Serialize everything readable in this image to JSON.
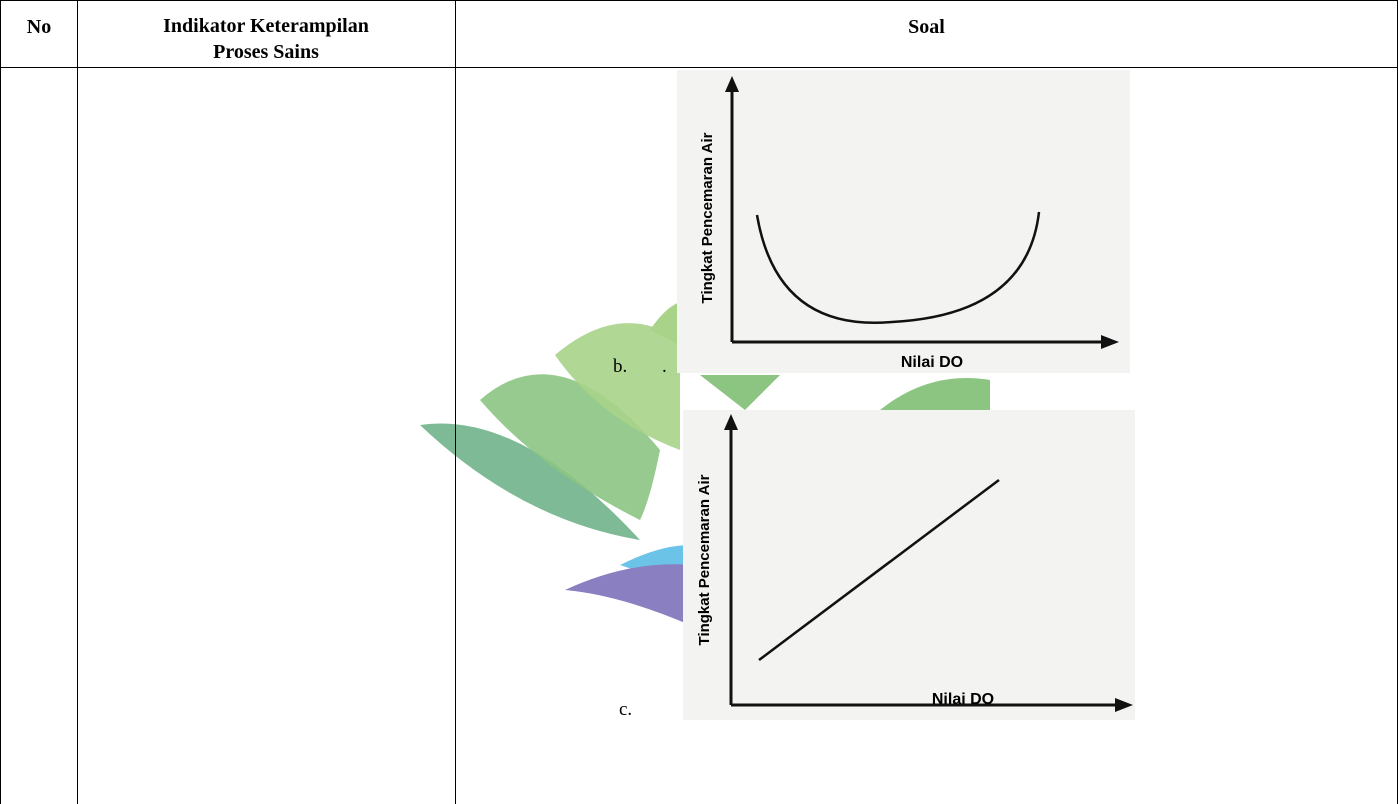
{
  "table": {
    "headers": [
      "No",
      "Indikator Keterampilan Proses Sains",
      "Soal"
    ],
    "options": [
      {
        "label": "b.",
        "mark": ".",
        "graph": {
          "y_label": "Tingkat Pencemaran Air",
          "x_label": "Nilai DO"
        }
      },
      {
        "label": "c.",
        "graph": {
          "y_label": "Tingkat Pencemaran Air",
          "x_label": "Nilai DO"
        }
      }
    ]
  }
}
